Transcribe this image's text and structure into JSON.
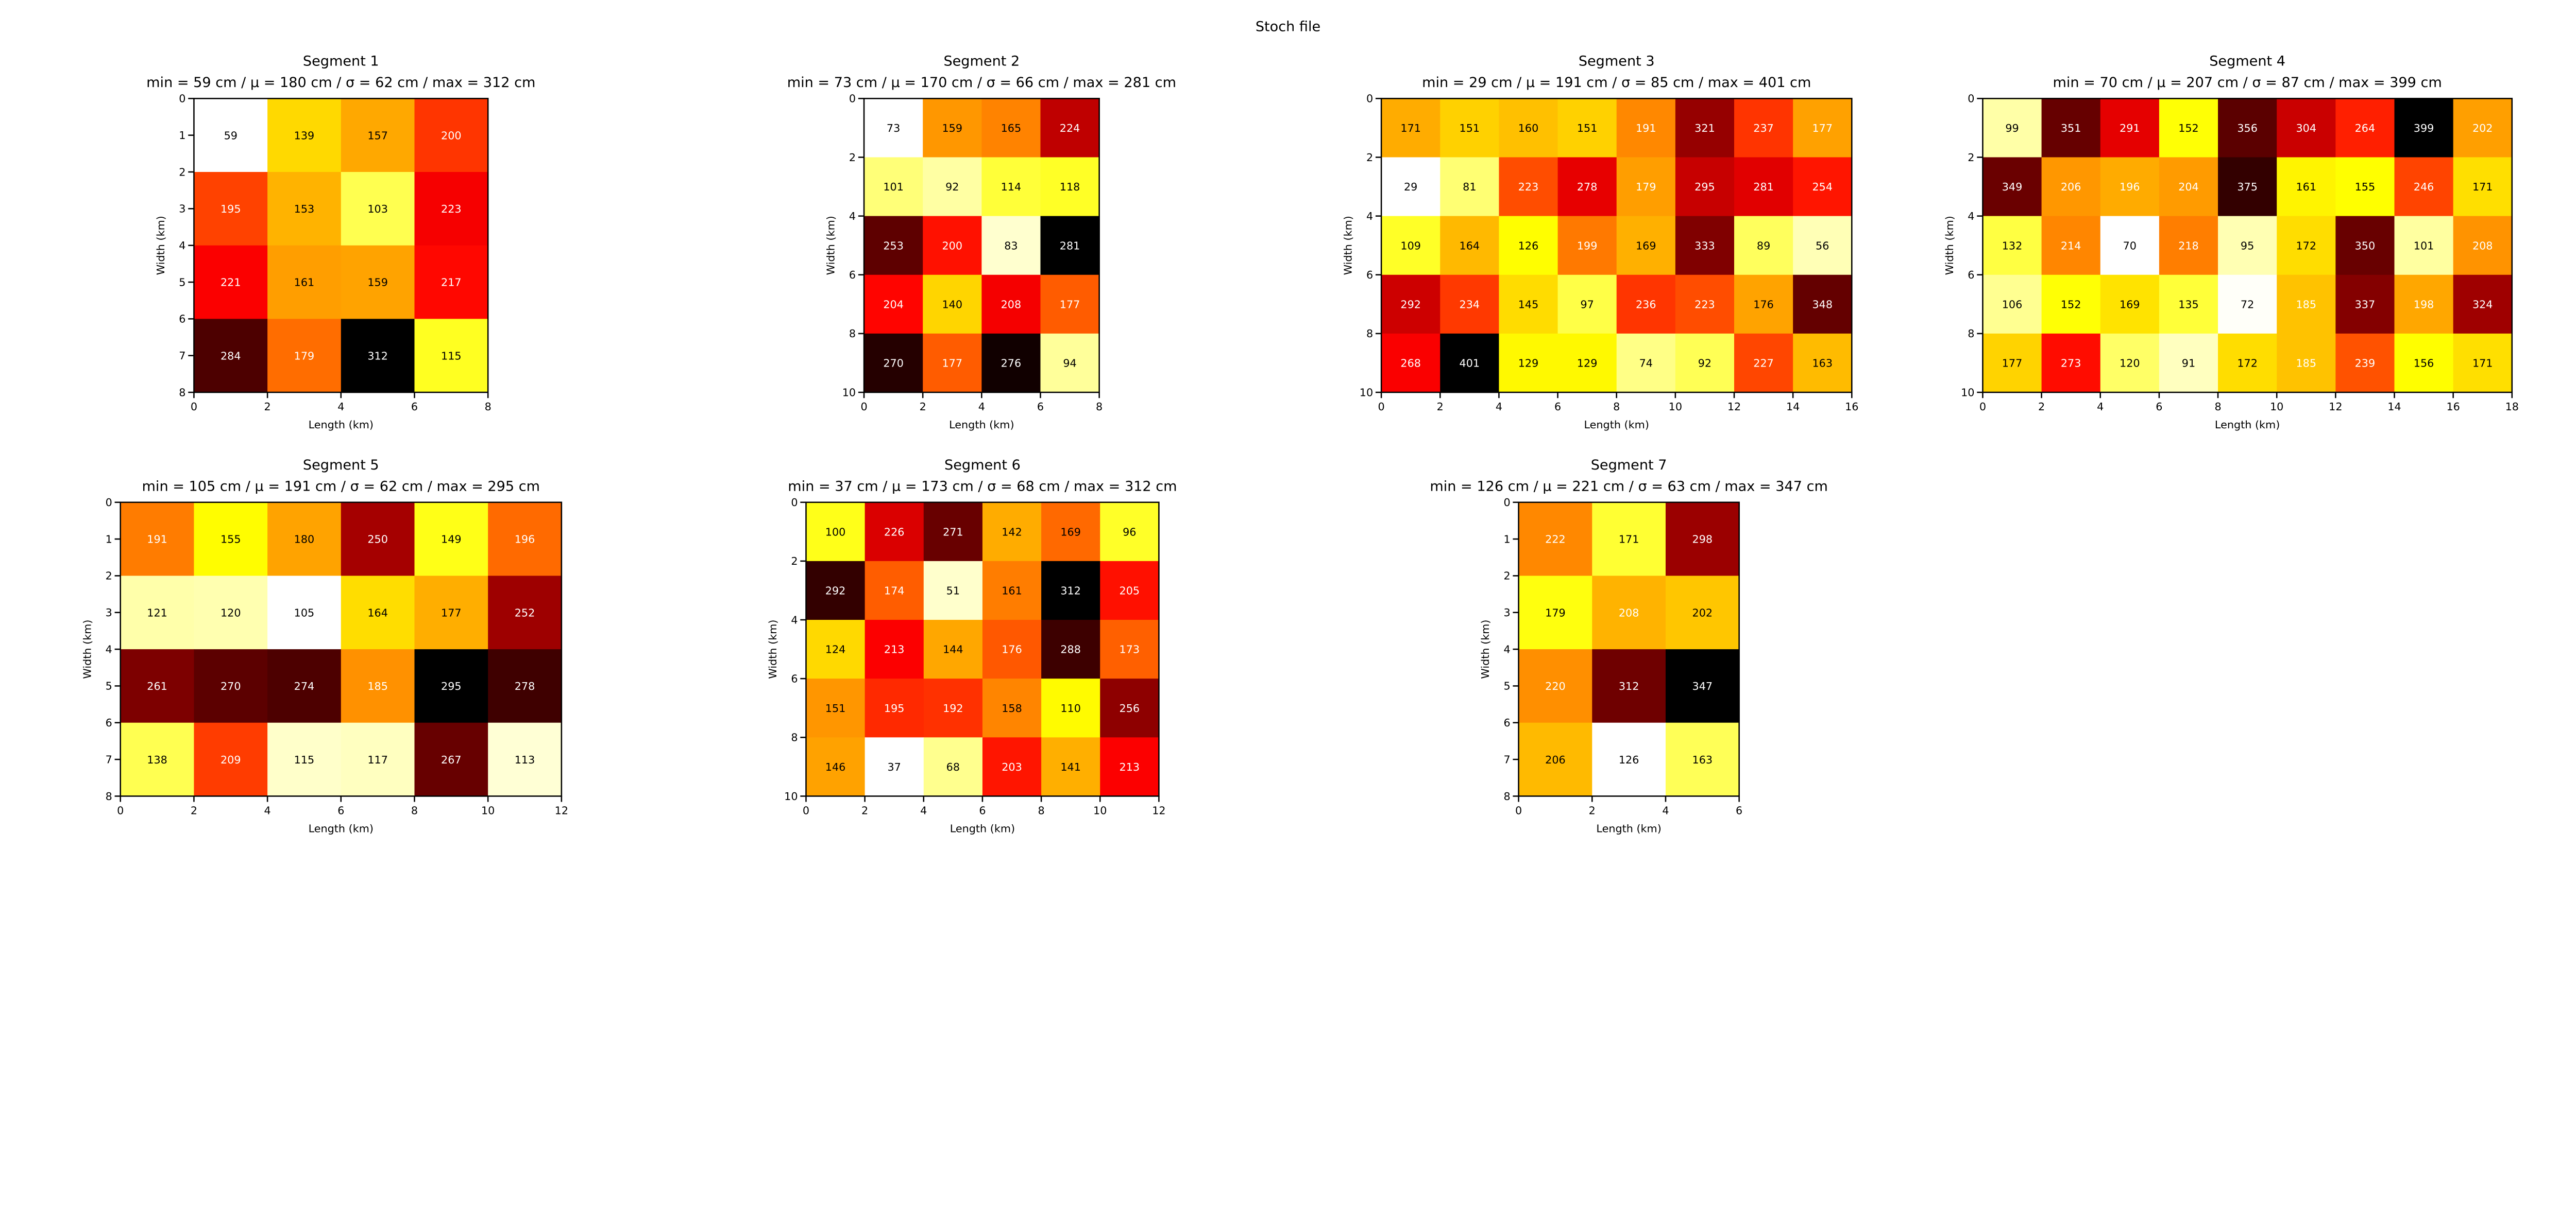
{
  "suptitle": "Stoch file",
  "colormap": "hot_r",
  "chart_data": [
    {
      "type": "heatmap",
      "title": "Segment 1",
      "subtitle": "min = 59 cm / μ = 180 cm / σ = 62 cm / max = 312 cm",
      "xlabel": "Length (km)",
      "ylabel": "Width (km)",
      "xlim": [
        0,
        8
      ],
      "ylim": [
        8,
        0
      ],
      "xticks": [
        0,
        2,
        4,
        6,
        8
      ],
      "yticks": [
        0,
        1,
        2,
        3,
        4,
        5,
        6,
        7,
        8
      ],
      "values": [
        [
          59,
          139,
          157,
          200
        ],
        [
          195,
          153,
          103,
          223
        ],
        [
          221,
          161,
          159,
          217
        ],
        [
          284,
          179,
          312,
          115
        ]
      ],
      "text_colors": [
        [
          "k",
          "k",
          "k",
          "w"
        ],
        [
          "w",
          "k",
          "k",
          "w"
        ],
        [
          "w",
          "k",
          "k",
          "w"
        ],
        [
          "w",
          "w",
          "w",
          "k"
        ]
      ]
    },
    {
      "type": "heatmap",
      "title": "Segment 2",
      "subtitle": "min = 73 cm / μ = 170 cm / σ = 66 cm / max = 281 cm",
      "xlabel": "Length (km)",
      "ylabel": "Width (km)",
      "xlim": [
        0,
        8
      ],
      "ylim": [
        10,
        0
      ],
      "xticks": [
        0,
        2,
        4,
        6,
        8
      ],
      "yticks": [
        0,
        2,
        4,
        6,
        8,
        10
      ],
      "values": [
        [
          73,
          159,
          165,
          224
        ],
        [
          101,
          92,
          114,
          118
        ],
        [
          253,
          200,
          83,
          281
        ],
        [
          204,
          140,
          208,
          177
        ],
        [
          270,
          177,
          276,
          94
        ]
      ],
      "text_colors": [
        [
          "k",
          "k",
          "k",
          "w"
        ],
        [
          "k",
          "k",
          "k",
          "k"
        ],
        [
          "w",
          "w",
          "k",
          "w"
        ],
        [
          "w",
          "k",
          "w",
          "w"
        ],
        [
          "w",
          "w",
          "w",
          "k"
        ]
      ]
    },
    {
      "type": "heatmap",
      "title": "Segment 3",
      "subtitle": "min = 29 cm / μ = 191 cm / σ = 85 cm / max = 401 cm",
      "xlabel": "Length (km)",
      "ylabel": "Width (km)",
      "xlim": [
        0,
        16
      ],
      "ylim": [
        10,
        0
      ],
      "xticks": [
        0,
        2,
        4,
        6,
        8,
        10,
        12,
        14,
        16
      ],
      "yticks": [
        0,
        2,
        4,
        6,
        8,
        10
      ],
      "values": [
        [
          171,
          151,
          160,
          151,
          191,
          321,
          237,
          177
        ],
        [
          29,
          81,
          223,
          278,
          179,
          295,
          281,
          254
        ],
        [
          109,
          164,
          126,
          199,
          169,
          333,
          89,
          56
        ],
        [
          292,
          234,
          145,
          97,
          236,
          223,
          176,
          348
        ],
        [
          268,
          401,
          129,
          129,
          74,
          92,
          227,
          163
        ]
      ],
      "text_colors": [
        [
          "k",
          "k",
          "k",
          "k",
          "w",
          "w",
          "w",
          "w"
        ],
        [
          "k",
          "k",
          "w",
          "w",
          "w",
          "w",
          "w",
          "w"
        ],
        [
          "k",
          "k",
          "k",
          "w",
          "k",
          "w",
          "k",
          "k"
        ],
        [
          "w",
          "w",
          "k",
          "k",
          "w",
          "w",
          "k",
          "w"
        ],
        [
          "w",
          "w",
          "k",
          "k",
          "k",
          "k",
          "w",
          "k"
        ]
      ]
    },
    {
      "type": "heatmap",
      "title": "Segment 4",
      "subtitle": "min = 70 cm / μ = 207 cm / σ = 87 cm / max = 399 cm",
      "xlabel": "Length (km)",
      "ylabel": "Width (km)",
      "xlim": [
        0,
        18
      ],
      "ylim": [
        10,
        0
      ],
      "xticks": [
        0,
        2,
        4,
        6,
        8,
        10,
        12,
        14,
        16,
        18
      ],
      "yticks": [
        0,
        2,
        4,
        6,
        8,
        10
      ],
      "values": [
        [
          99,
          351,
          291,
          152,
          356,
          304,
          264,
          399,
          202
        ],
        [
          349,
          206,
          196,
          204,
          375,
          161,
          155,
          246,
          171
        ],
        [
          132,
          214,
          70,
          218,
          95,
          172,
          350,
          101,
          208
        ],
        [
          106,
          152,
          169,
          135,
          72,
          185,
          337,
          198,
          324
        ],
        [
          177,
          273,
          120,
          91,
          172,
          185,
          239,
          156,
          171
        ]
      ],
      "text_colors": [
        [
          "k",
          "w",
          "w",
          "k",
          "w",
          "w",
          "w",
          "w",
          "w"
        ],
        [
          "w",
          "w",
          "w",
          "w",
          "w",
          "k",
          "k",
          "w",
          "k"
        ],
        [
          "k",
          "w",
          "k",
          "w",
          "k",
          "k",
          "w",
          "k",
          "w"
        ],
        [
          "k",
          "k",
          "k",
          "k",
          "k",
          "w",
          "w",
          "w",
          "w"
        ],
        [
          "k",
          "w",
          "k",
          "k",
          "k",
          "w",
          "w",
          "k",
          "k"
        ]
      ]
    },
    {
      "type": "heatmap",
      "title": "Segment 5",
      "subtitle": "min = 105 cm / μ = 191 cm / σ = 62 cm / max = 295 cm",
      "xlabel": "Length (km)",
      "ylabel": "Width (km)",
      "xlim": [
        0,
        12
      ],
      "ylim": [
        8,
        0
      ],
      "xticks": [
        0,
        2,
        4,
        6,
        8,
        10,
        12
      ],
      "yticks": [
        0,
        1,
        2,
        3,
        4,
        5,
        6,
        7,
        8
      ],
      "values": [
        [
          191,
          155,
          180,
          250,
          149,
          196
        ],
        [
          121,
          120,
          105,
          164,
          177,
          252
        ],
        [
          261,
          270,
          274,
          185,
          295,
          278
        ],
        [
          138,
          209,
          115,
          117,
          267,
          113
        ]
      ],
      "text_colors": [
        [
          "w",
          "k",
          "k",
          "w",
          "k",
          "w"
        ],
        [
          "k",
          "k",
          "k",
          "k",
          "k",
          "w"
        ],
        [
          "w",
          "w",
          "w",
          "w",
          "w",
          "w"
        ],
        [
          "k",
          "w",
          "k",
          "k",
          "w",
          "k"
        ]
      ]
    },
    {
      "type": "heatmap",
      "title": "Segment 6",
      "subtitle": "min = 37 cm / μ = 173 cm / σ = 68 cm / max = 312 cm",
      "xlabel": "Length (km)",
      "ylabel": "Width (km)",
      "xlim": [
        0,
        12
      ],
      "ylim": [
        10,
        0
      ],
      "xticks": [
        0,
        2,
        4,
        6,
        8,
        10,
        12
      ],
      "yticks": [
        0,
        2,
        4,
        6,
        8,
        10
      ],
      "values": [
        [
          100,
          226,
          271,
          142,
          169,
          96
        ],
        [
          292,
          174,
          51,
          161,
          312,
          205
        ],
        [
          124,
          213,
          144,
          176,
          288,
          173
        ],
        [
          151,
          195,
          192,
          158,
          110,
          256
        ],
        [
          146,
          37,
          68,
          203,
          141,
          213
        ]
      ],
      "text_colors": [
        [
          "k",
          "w",
          "w",
          "k",
          "k",
          "k"
        ],
        [
          "w",
          "w",
          "k",
          "k",
          "w",
          "w"
        ],
        [
          "k",
          "w",
          "k",
          "w",
          "w",
          "w"
        ],
        [
          "k",
          "w",
          "w",
          "k",
          "k",
          "w"
        ],
        [
          "k",
          "k",
          "k",
          "w",
          "k",
          "w"
        ]
      ]
    },
    {
      "type": "heatmap",
      "title": "Segment 7",
      "subtitle": "min = 126 cm / μ = 221 cm / σ = 63 cm / max = 347 cm",
      "xlabel": "Length (km)",
      "ylabel": "Width (km)",
      "xlim": [
        0,
        6
      ],
      "ylim": [
        8,
        0
      ],
      "xticks": [
        0,
        2,
        4,
        6
      ],
      "yticks": [
        0,
        1,
        2,
        3,
        4,
        5,
        6,
        7,
        8
      ],
      "values": [
        [
          222,
          171,
          298
        ],
        [
          179,
          208,
          202
        ],
        [
          220,
          312,
          347
        ],
        [
          206,
          126,
          163
        ]
      ],
      "text_colors": [
        [
          "w",
          "k",
          "w"
        ],
        [
          "k",
          "w",
          "k"
        ],
        [
          "w",
          "w",
          "w"
        ],
        [
          "k",
          "k",
          "k"
        ]
      ]
    }
  ]
}
